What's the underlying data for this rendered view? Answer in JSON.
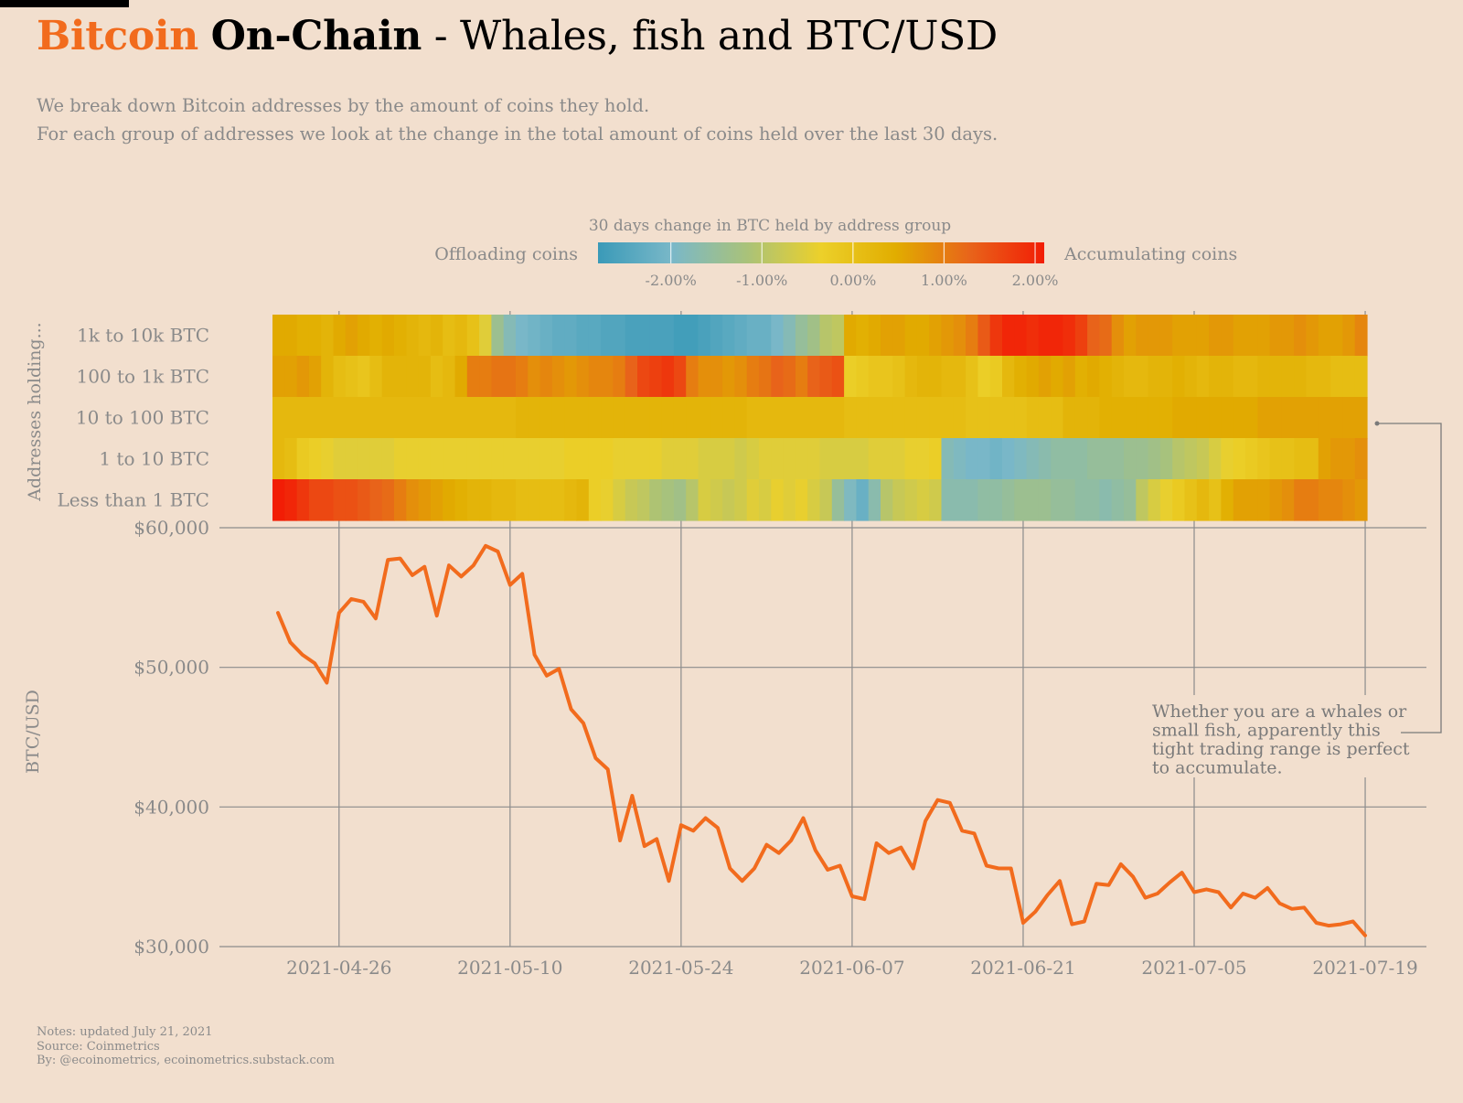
{
  "header": {
    "title_brand": "Bitcoin",
    "title_brand2": "On-Chain",
    "title_rest": " - Whales, fish and BTC/USD",
    "subtitle_line1": "We break down Bitcoin addresses by the amount of coins they hold.",
    "subtitle_line2": "For each group of addresses we look at the change in the total amount of coins held over the last 30 days."
  },
  "footer": {
    "notes": "Notes: updated July 21, 2021",
    "source": "Source: Coinmetrics",
    "by": "By: @ecoinometrics, ecoinometrics.substack.com"
  },
  "colors": {
    "background": "#f2dfce",
    "line": "#f26b1d",
    "grid": "#8c8c8c",
    "scale": [
      "#3a9ab8",
      "#7ab8c8",
      "#a9c27a",
      "#ecd02a",
      "#e1ad00",
      "#e8641a",
      "#f21d05"
    ]
  },
  "chart_data": [
    {
      "type": "heatmap",
      "title": "30 days change in BTC held by address group",
      "legend": {
        "left_label": "Offloading coins",
        "right_label": "Accumulating coins",
        "ticks": [
          "-2.00%",
          "-1.00%",
          "0.00%",
          "1.00%",
          "2.00%"
        ],
        "tick_values": [
          -2,
          -1,
          0,
          1,
          2
        ],
        "range": [
          -2.8,
          2.1
        ]
      },
      "ylabel": "Addresses holding...",
      "rows": [
        "1k to 10k BTC",
        "100 to 1k BTC",
        "10 to 100 BTC",
        "1 to 10 BTC",
        "Less than 1 BTC"
      ],
      "x_start": "2021-04-21",
      "x_end": "2021-07-20",
      "values": [
        [
          0.5,
          0.5,
          0.4,
          0.4,
          0.3,
          0.5,
          0.6,
          0.5,
          0.4,
          0.5,
          0.4,
          0.3,
          0.2,
          0.3,
          0.1,
          0.2,
          0.0,
          -0.5,
          -1.4,
          -1.8,
          -2.0,
          -2.1,
          -2.2,
          -2.3,
          -2.3,
          -2.4,
          -2.4,
          -2.5,
          -2.5,
          -2.6,
          -2.6,
          -2.6,
          -2.6,
          -2.7,
          -2.7,
          -2.6,
          -2.5,
          -2.4,
          -2.3,
          -2.2,
          -2.2,
          -2.0,
          -1.8,
          -1.5,
          -1.3,
          -1.0,
          -0.9,
          0.5,
          0.4,
          0.5,
          0.6,
          0.6,
          0.5,
          0.5,
          0.6,
          0.7,
          0.8,
          1.0,
          1.4,
          1.8,
          2.0,
          2.0,
          1.9,
          2.0,
          2.0,
          1.9,
          1.7,
          1.3,
          1.2,
          0.8,
          0.6,
          0.7,
          0.7,
          0.7,
          0.6,
          0.6,
          0.6,
          0.7,
          0.7,
          0.6,
          0.6,
          0.6,
          0.7,
          0.7,
          0.8,
          0.7,
          0.6,
          0.6,
          0.7,
          0.9
        ],
        [
          0.6,
          0.6,
          0.7,
          0.6,
          0.3,
          0.1,
          0.0,
          -0.1,
          0.1,
          0.3,
          0.3,
          0.3,
          0.3,
          0.1,
          0.2,
          0.5,
          1.0,
          1.0,
          1.1,
          1.1,
          1.0,
          0.8,
          0.9,
          0.8,
          0.7,
          0.8,
          0.9,
          0.9,
          1.0,
          1.3,
          1.6,
          1.7,
          1.8,
          1.6,
          1.0,
          0.8,
          0.8,
          0.7,
          0.8,
          1.0,
          1.1,
          1.3,
          1.2,
          1.0,
          1.3,
          1.4,
          1.5,
          -0.3,
          -0.2,
          -0.1,
          -0.1,
          0.0,
          0.2,
          0.3,
          0.3,
          0.2,
          0.2,
          0.0,
          -0.3,
          -0.2,
          0.2,
          0.4,
          0.5,
          0.6,
          0.5,
          0.6,
          0.4,
          0.5,
          0.4,
          0.3,
          0.2,
          0.2,
          0.3,
          0.3,
          0.4,
          0.3,
          0.2,
          0.3,
          0.3,
          0.2,
          0.2,
          0.3,
          0.3,
          0.3,
          0.3,
          0.2,
          0.2,
          0.1,
          0.1,
          0.1
        ],
        [
          0.2,
          0.2,
          0.2,
          0.2,
          0.2,
          0.2,
          0.2,
          0.2,
          0.2,
          0.2,
          0.2,
          0.2,
          0.2,
          0.2,
          0.2,
          0.2,
          0.2,
          0.2,
          0.2,
          0.2,
          0.3,
          0.3,
          0.3,
          0.3,
          0.3,
          0.3,
          0.3,
          0.3,
          0.3,
          0.3,
          0.3,
          0.3,
          0.3,
          0.3,
          0.3,
          0.3,
          0.3,
          0.3,
          0.3,
          0.2,
          0.2,
          0.2,
          0.2,
          0.2,
          0.2,
          0.2,
          0.2,
          0.1,
          0.1,
          0.1,
          0.1,
          0.1,
          0.1,
          0.1,
          0.1,
          0.1,
          0.1,
          0.0,
          0.0,
          0.0,
          0.0,
          0.0,
          0.1,
          0.1,
          0.1,
          0.3,
          0.3,
          0.3,
          0.4,
          0.4,
          0.4,
          0.4,
          0.4,
          0.4,
          0.5,
          0.5,
          0.5,
          0.5,
          0.5,
          0.5,
          0.5,
          0.6,
          0.6,
          0.6,
          0.6,
          0.6,
          0.6,
          0.6,
          0.6,
          0.6
        ],
        [
          0.2,
          0.1,
          -0.2,
          -0.3,
          -0.4,
          -0.5,
          -0.5,
          -0.5,
          -0.5,
          -0.5,
          -0.4,
          -0.4,
          -0.4,
          -0.4,
          -0.4,
          -0.4,
          -0.4,
          -0.4,
          -0.4,
          -0.4,
          -0.4,
          -0.4,
          -0.4,
          -0.4,
          -0.3,
          -0.3,
          -0.3,
          -0.3,
          -0.4,
          -0.4,
          -0.4,
          -0.4,
          -0.5,
          -0.5,
          -0.5,
          -0.6,
          -0.6,
          -0.6,
          -0.7,
          -0.6,
          -0.5,
          -0.5,
          -0.5,
          -0.5,
          -0.5,
          -0.6,
          -0.6,
          -0.6,
          -0.6,
          -0.5,
          -0.5,
          -0.5,
          -0.4,
          -0.4,
          -0.3,
          -1.8,
          -1.9,
          -2.0,
          -2.0,
          -2.1,
          -2.0,
          -1.9,
          -1.8,
          -1.7,
          -1.6,
          -1.6,
          -1.6,
          -1.5,
          -1.5,
          -1.5,
          -1.4,
          -1.4,
          -1.3,
          -1.2,
          -1.0,
          -0.9,
          -0.8,
          -0.6,
          -0.4,
          -0.3,
          -0.2,
          -0.1,
          0.0,
          0.0,
          0.1,
          0.1,
          0.6,
          0.7,
          0.7,
          0.8
        ],
        [
          2.1,
          2.0,
          1.8,
          1.6,
          1.6,
          1.5,
          1.5,
          1.4,
          1.3,
          1.2,
          1.0,
          0.8,
          0.7,
          0.6,
          0.5,
          0.4,
          0.3,
          0.3,
          0.2,
          0.2,
          0.1,
          0.1,
          0.1,
          0.1,
          0.2,
          0.3,
          -0.3,
          -0.4,
          -0.6,
          -0.8,
          -0.9,
          -1.1,
          -1.2,
          -1.3,
          -1.0,
          -0.6,
          -0.7,
          -0.8,
          -0.7,
          -0.5,
          -0.6,
          -0.4,
          -0.5,
          -0.4,
          -0.6,
          -0.8,
          -1.5,
          -1.9,
          -2.2,
          -1.7,
          -1.0,
          -0.8,
          -0.7,
          -0.6,
          -0.7,
          -1.7,
          -1.7,
          -1.7,
          -1.6,
          -1.6,
          -1.5,
          -1.4,
          -1.4,
          -1.4,
          -1.5,
          -1.5,
          -1.6,
          -1.6,
          -1.7,
          -1.6,
          -1.5,
          -0.9,
          -0.6,
          -0.4,
          -0.2,
          0.0,
          0.2,
          0.0,
          0.4,
          0.6,
          0.6,
          0.6,
          0.7,
          0.8,
          1.0,
          1.0,
          0.9,
          0.9,
          0.8,
          0.7
        ]
      ]
    },
    {
      "type": "line",
      "ylabel": "BTC/USD",
      "yticks": [
        "$60,000",
        "$50,000",
        "$40,000",
        "$30,000"
      ],
      "ytick_values": [
        60000,
        50000,
        40000,
        30000
      ],
      "ylim": [
        30000,
        60000
      ],
      "xticks": [
        "2021-04-26",
        "2021-05-10",
        "2021-05-24",
        "2021-06-07",
        "2021-06-21",
        "2021-07-05",
        "2021-07-19"
      ],
      "x_start": "2021-04-21",
      "annotation": "Whether you are a whales or small fish, apparently this tight trading range is perfect to accumulate.",
      "series": [
        {
          "values": [
            53900,
            51800,
            50900,
            50300,
            48900,
            53900,
            54900,
            54700,
            53500,
            57700,
            57800,
            56600,
            57200,
            53700,
            57300,
            56500,
            57300,
            58700,
            58300,
            55900,
            56700,
            50900,
            49400,
            49900,
            47000,
            46000,
            43500,
            42700,
            37600,
            40800,
            37200,
            37700,
            34700,
            38700,
            38300,
            39200,
            38500,
            35600,
            34700,
            35600,
            37300,
            36700,
            37600,
            39200,
            36900,
            35500,
            35800,
            33600,
            33400,
            37400,
            36700,
            37100,
            35600,
            39000,
            40500,
            40300,
            38300,
            38100,
            35800,
            35600,
            35600,
            31700,
            32500,
            33700,
            34700,
            31600,
            31800,
            34500,
            34400,
            35900,
            35000,
            33500,
            33800,
            34600,
            35300,
            33900,
            34100,
            33900,
            32800,
            33800,
            33500,
            34200,
            33100,
            32700,
            32800,
            31700,
            31500,
            31600,
            31800,
            30800
          ]
        }
      ]
    }
  ]
}
